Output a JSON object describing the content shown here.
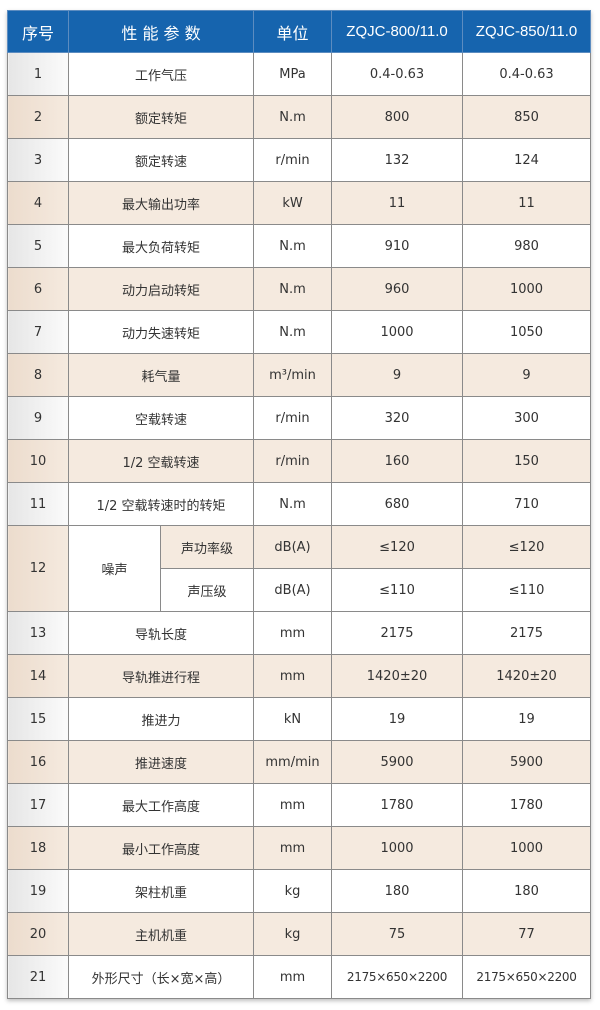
{
  "colors": {
    "header": "#1664ae",
    "beige": "#f5eadf",
    "white": "#ffffff"
  },
  "header": [
    "序号",
    "性 能 参 数",
    "单位",
    "ZQJC-800/11.0",
    "ZQJC-850/11.0"
  ],
  "rows": [
    {
      "no": "1",
      "param": "工作气压",
      "unit": "MPa",
      "a": "0.4-0.63",
      "b": "0.4-0.63"
    },
    {
      "no": "2",
      "param": "额定转矩",
      "unit": "N.m",
      "a": "800",
      "b": "850"
    },
    {
      "no": "3",
      "param": "额定转速",
      "unit": "r/min",
      "a": "132",
      "b": "124"
    },
    {
      "no": "4",
      "param": "最大输出功率",
      "unit": "kW",
      "a": "11",
      "b": "11"
    },
    {
      "no": "5",
      "param": "最大负荷转矩",
      "unit": "N.m",
      "a": "910",
      "b": "980"
    },
    {
      "no": "6",
      "param": "动力启动转矩",
      "unit": "N.m",
      "a": "960",
      "b": "1000"
    },
    {
      "no": "7",
      "param": "动力失速转矩",
      "unit": "N.m",
      "a": "1000",
      "b": "1050"
    },
    {
      "no": "8",
      "param": "耗气量",
      "unit": "m³/min",
      "a": "9",
      "b": "9"
    },
    {
      "no": "9",
      "param": "空载转速",
      "unit": "r/min",
      "a": "320",
      "b": "300"
    },
    {
      "no": "10",
      "param": "1/2 空载转速",
      "unit": "r/min",
      "a": "160",
      "b": "150"
    },
    {
      "no": "11",
      "param": "1/2 空载转速时的转矩",
      "unit": "N.m",
      "a": "680",
      "b": "710"
    },
    {
      "no": "12",
      "param": "噪声",
      "sub": [
        {
          "param": "声功率级",
          "unit": "dB(A)",
          "a": "≤120",
          "b": "≤120"
        },
        {
          "param": "声压级",
          "unit": "dB(A)",
          "a": "≤110",
          "b": "≤110"
        }
      ]
    },
    {
      "no": "13",
      "param": "导轨长度",
      "unit": "mm",
      "a": "2175",
      "b": "2175"
    },
    {
      "no": "14",
      "param": "导轨推进行程",
      "unit": "mm",
      "a": "1420±20",
      "b": "1420±20"
    },
    {
      "no": "15",
      "param": "推进力",
      "unit": "kN",
      "a": "19",
      "b": "19"
    },
    {
      "no": "16",
      "param": "推进速度",
      "unit": "mm/min",
      "a": "5900",
      "b": "5900"
    },
    {
      "no": "17",
      "param": "最大工作高度",
      "unit": "mm",
      "a": "1780",
      "b": "1780"
    },
    {
      "no": "18",
      "param": "最小工作高度",
      "unit": "mm",
      "a": "1000",
      "b": "1000"
    },
    {
      "no": "19",
      "param": "架柱机重",
      "unit": "kg",
      "a": "180",
      "b": "180"
    },
    {
      "no": "20",
      "param": "主机机重",
      "unit": "kg",
      "a": "75",
      "b": "77"
    },
    {
      "no": "21",
      "param": "外形尺寸（长×宽×高）",
      "unit": "mm",
      "a": "2175×650×2200",
      "b": "2175×650×2200"
    }
  ]
}
